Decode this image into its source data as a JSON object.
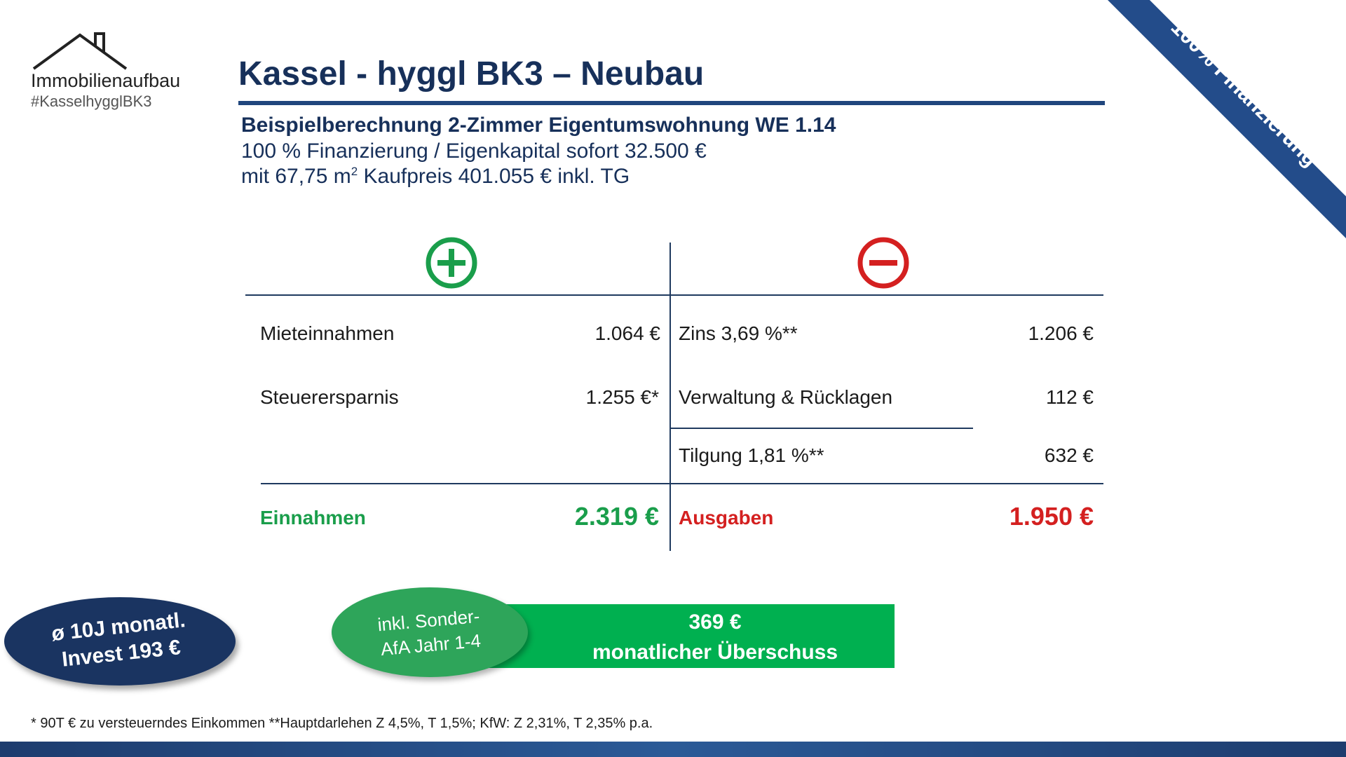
{
  "ribbon": {
    "text": "100% Finanzierung",
    "color": "#234c8a"
  },
  "logo": {
    "name": "Immobilienaufbau",
    "tag": "#KasselhygglBK3",
    "icon": "house-roof-icon"
  },
  "header": {
    "title": "Kassel - hyggl BK3 – Neubau",
    "subtitle": "Beispielberechnung 2-Zimmer Eigentumswohnung WE 1.14",
    "line2": "100 % Finanzierung / Eigenkapital sofort 32.500 €",
    "line3_pre": "mit 67,75 m",
    "line3_sup": "2",
    "line3_post": " Kaufpreis 401.055 € inkl. TG"
  },
  "table": {
    "plus_icon": "plus-circle-icon",
    "minus_icon": "minus-circle-icon",
    "income": [
      {
        "label": "Mieteinnahmen",
        "value": "1.064 €"
      },
      {
        "label": "Steuerersparnis",
        "value": "1.255 €*"
      }
    ],
    "expenses": [
      {
        "label": "Zins 3,69 %**",
        "value": "1.206 €"
      },
      {
        "label": "Verwaltung & Rücklagen",
        "value": "112 €"
      },
      {
        "label": "Tilgung 1,81 %**",
        "value": "632 €"
      }
    ],
    "income_total": {
      "label": "Einnahmen",
      "value": "2.319 €"
    },
    "expense_total": {
      "label": "Ausgaben",
      "value": "1.950 €"
    }
  },
  "invest_badge": {
    "line1": "ø 10J monatl.",
    "line2": "Invest 193 €"
  },
  "surplus": {
    "amount": "369 €",
    "label": "monatlicher Überschuss"
  },
  "sonder_badge": {
    "line1": "inkl. Sonder-",
    "line2": "AfA Jahr 1-4"
  },
  "footnote": "* 90T € zu versteuerndes Einkommen **Hauptdarlehen Z 4,5%, T 1,5%; KfW: Z 2,31%, T 2,35% p.a.",
  "colors": {
    "navy": "#17305a",
    "green": "#1a9e4b",
    "red": "#d42020",
    "banner_green": "#00b050"
  }
}
